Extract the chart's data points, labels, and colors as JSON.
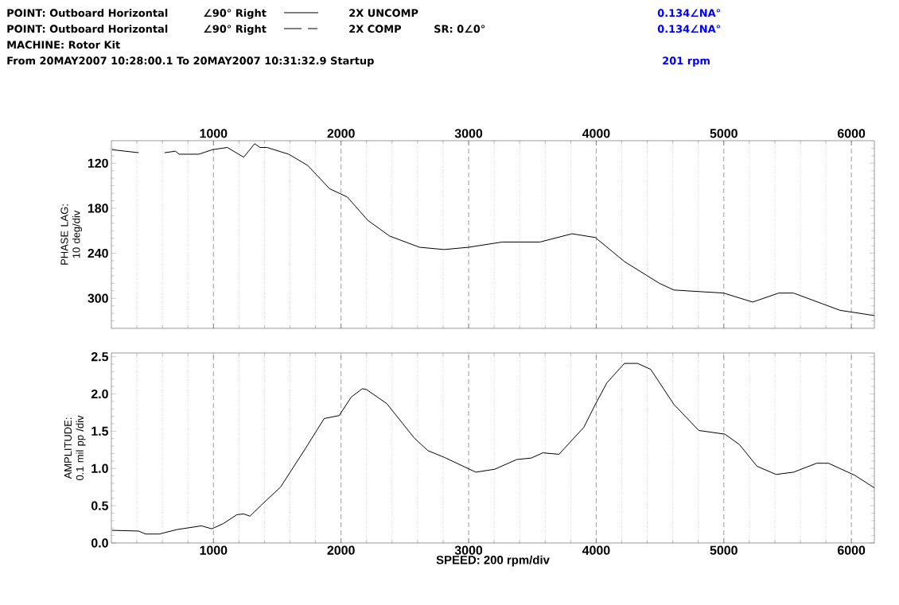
{
  "chart_data": [
    {
      "type": "line",
      "ylabel": "PHASE LAG: 10 deg/div",
      "annotations": [
        "POINT: Outboard Horizontal",
        "∠90° Right",
        "0.134∠NA°",
        "POINT: Outboard Horizontal",
        "∠90° Right",
        "2X COMP",
        "SR: 0∠0°",
        "0.134∠NA°",
        "MACHINE: Rotor Kit",
        "From 20MAY2007 10:28:00.1 To 20MAY2007 10:31:32.9 Startup",
        "201 rpm"
      ],
      "x": [
        205,
        414,
        500,
        617,
        702,
        731,
        885,
        991,
        1109,
        1237,
        1323,
        1365,
        1419,
        1590,
        1739,
        1910,
        2049,
        2209,
        2380,
        2615,
        2808,
        3000,
        3263,
        3559,
        3810,
        3993,
        4221,
        4495,
        4609,
        4998,
        5226,
        5431,
        5546,
        5911,
        6180
      ],
      "series": [
        {
          "name": "2X UNCOMP",
          "color": "#000000",
          "line_style": "solid",
          "values": [
            102,
            106,
            null,
            106,
            104,
            108,
            108,
            102,
            99,
            112,
            94,
            99,
            99,
            108,
            123,
            154,
            165,
            196,
            217,
            232,
            235,
            232,
            225,
            225,
            214,
            219,
            251,
            280,
            289,
            293,
            305,
            293,
            293,
            316,
            323
          ]
        }
      ],
      "xlim": [
        200,
        6180
      ],
      "xticks": [
        {
          "value": 400,
          "label": null
        },
        {
          "value": 600,
          "label": null
        },
        {
          "value": 800,
          "label": null
        },
        1000,
        {
          "value": 1200,
          "label": null
        },
        {
          "value": 1400,
          "label": null
        },
        {
          "value": 1600,
          "label": null
        },
        {
          "value": 1800,
          "label": null
        },
        2000,
        {
          "value": 2200,
          "label": null
        },
        {
          "value": 2400,
          "label": null
        },
        {
          "value": 2600,
          "label": null
        },
        {
          "value": 2800,
          "label": null
        },
        3000,
        {
          "value": 3200,
          "label": null
        },
        {
          "value": 3400,
          "label": null
        },
        {
          "value": 3600,
          "label": null
        },
        {
          "value": 3800,
          "label": null
        },
        4000,
        {
          "value": 4200,
          "label": null
        },
        {
          "value": 4400,
          "label": null
        },
        {
          "value": 4600,
          "label": null
        },
        {
          "value": 4800,
          "label": null
        },
        5000,
        {
          "value": 5200,
          "label": null
        },
        {
          "value": 5400,
          "label": null
        },
        {
          "value": 5600,
          "label": null
        },
        {
          "value": 5800,
          "label": null
        },
        6000
      ],
      "ylim": [
        340,
        90
      ],
      "yticks": [
        {
          "value": 100,
          "label": null
        },
        {
          "value": 110,
          "label": null
        },
        120,
        {
          "value": 130,
          "label": null
        },
        {
          "value": 140,
          "label": null
        },
        {
          "value": 150,
          "label": null
        },
        {
          "value": 160,
          "label": null
        },
        {
          "value": 170,
          "label": null
        },
        180,
        {
          "value": 190,
          "label": null
        },
        {
          "value": 200,
          "label": null
        },
        {
          "value": 210,
          "label": null
        },
        {
          "value": 220,
          "label": null
        },
        {
          "value": 230,
          "label": null
        },
        240,
        {
          "value": 250,
          "label": null
        },
        {
          "value": 260,
          "label": null
        },
        {
          "value": 270,
          "label": null
        },
        {
          "value": 280,
          "label": null
        },
        {
          "value": 290,
          "label": null
        },
        300,
        {
          "value": 310,
          "label": null
        },
        {
          "value": 320,
          "label": null
        },
        {
          "value": 330,
          "label": null
        }
      ],
      "grid": "x",
      "legend": "top",
      "marker": "none"
    },
    {
      "type": "line",
      "xlabel": "SPEED: 200 rpm/div",
      "ylabel": "AMPLITUDE: 0.1 mil pp /div",
      "x": [
        205,
        414,
        468,
        575,
        714,
        906,
        987,
        1077,
        1184,
        1237,
        1286,
        1376,
        1526,
        1718,
        1868,
        1985,
        2081,
        2167,
        2199,
        2359,
        2573,
        2680,
        2808,
        3057,
        3205,
        3377,
        3491,
        3582,
        3708,
        3902,
        3993,
        4084,
        4221,
        4324,
        4427,
        4609,
        4804,
        5009,
        5123,
        5260,
        5409,
        5546,
        5728,
        5820,
        6025,
        6180
      ],
      "series": [
        {
          "color": "#000000",
          "line_style": "solid",
          "values": [
            0.17,
            0.16,
            0.12,
            0.12,
            0.18,
            0.23,
            0.19,
            0.26,
            0.38,
            0.39,
            0.36,
            0.51,
            0.75,
            1.26,
            1.67,
            1.71,
            1.96,
            2.07,
            2.06,
            1.87,
            1.41,
            1.24,
            1.15,
            0.95,
            0.99,
            1.12,
            1.14,
            1.21,
            1.19,
            1.55,
            1.86,
            2.15,
            2.41,
            2.41,
            2.33,
            1.86,
            1.51,
            1.46,
            1.32,
            1.03,
            0.92,
            0.95,
            1.07,
            1.07,
            0.91,
            0.74
          ]
        }
      ],
      "xlim": [
        200,
        6180
      ],
      "xticks": [
        {
          "value": 400,
          "label": null
        },
        {
          "value": 600,
          "label": null
        },
        {
          "value": 800,
          "label": null
        },
        1000,
        {
          "value": 1200,
          "label": null
        },
        {
          "value": 1400,
          "label": null
        },
        {
          "value": 1600,
          "label": null
        },
        {
          "value": 1800,
          "label": null
        },
        2000,
        {
          "value": 2200,
          "label": null
        },
        {
          "value": 2400,
          "label": null
        },
        {
          "value": 2600,
          "label": null
        },
        {
          "value": 2800,
          "label": null
        },
        3000,
        {
          "value": 3200,
          "label": null
        },
        {
          "value": 3400,
          "label": null
        },
        {
          "value": 3600,
          "label": null
        },
        {
          "value": 3800,
          "label": null
        },
        4000,
        {
          "value": 4200,
          "label": null
        },
        {
          "value": 4400,
          "label": null
        },
        {
          "value": 4600,
          "label": null
        },
        {
          "value": 4800,
          "label": null
        },
        5000,
        {
          "value": 5200,
          "label": null
        },
        {
          "value": 5400,
          "label": null
        },
        {
          "value": 5600,
          "label": null
        },
        {
          "value": 5800,
          "label": null
        },
        6000
      ],
      "ylim": [
        0,
        2.55
      ],
      "yticks": [
        {
          "value": 0,
          "label": "0.0"
        },
        {
          "value": 0.1,
          "label": null
        },
        {
          "value": 0.2,
          "label": null
        },
        {
          "value": 0.3,
          "label": null
        },
        {
          "value": 0.4,
          "label": null
        },
        {
          "value": 0.5,
          "label": "0.5"
        },
        {
          "value": 0.6,
          "label": null
        },
        {
          "value": 0.7,
          "label": null
        },
        {
          "value": 0.8,
          "label": null
        },
        {
          "value": 0.9,
          "label": null
        },
        {
          "value": 1,
          "label": "1.0"
        },
        {
          "value": 1.1,
          "label": null
        },
        {
          "value": 1.2,
          "label": null
        },
        {
          "value": 1.3,
          "label": null
        },
        {
          "value": 1.4,
          "label": null
        },
        {
          "value": 1.5,
          "label": "1.5"
        },
        {
          "value": 1.6,
          "label": null
        },
        {
          "value": 1.7,
          "label": null
        },
        {
          "value": 1.8,
          "label": null
        },
        {
          "value": 1.9,
          "label": null
        },
        {
          "value": 2,
          "label": "2.0"
        },
        {
          "value": 2.1,
          "label": null
        },
        {
          "value": 2.2,
          "label": null
        },
        {
          "value": 2.3,
          "label": null
        },
        {
          "value": 2.4,
          "label": null
        },
        {
          "value": 2.5,
          "label": "2.5"
        }
      ],
      "grid": "x",
      "marker": "none"
    }
  ]
}
